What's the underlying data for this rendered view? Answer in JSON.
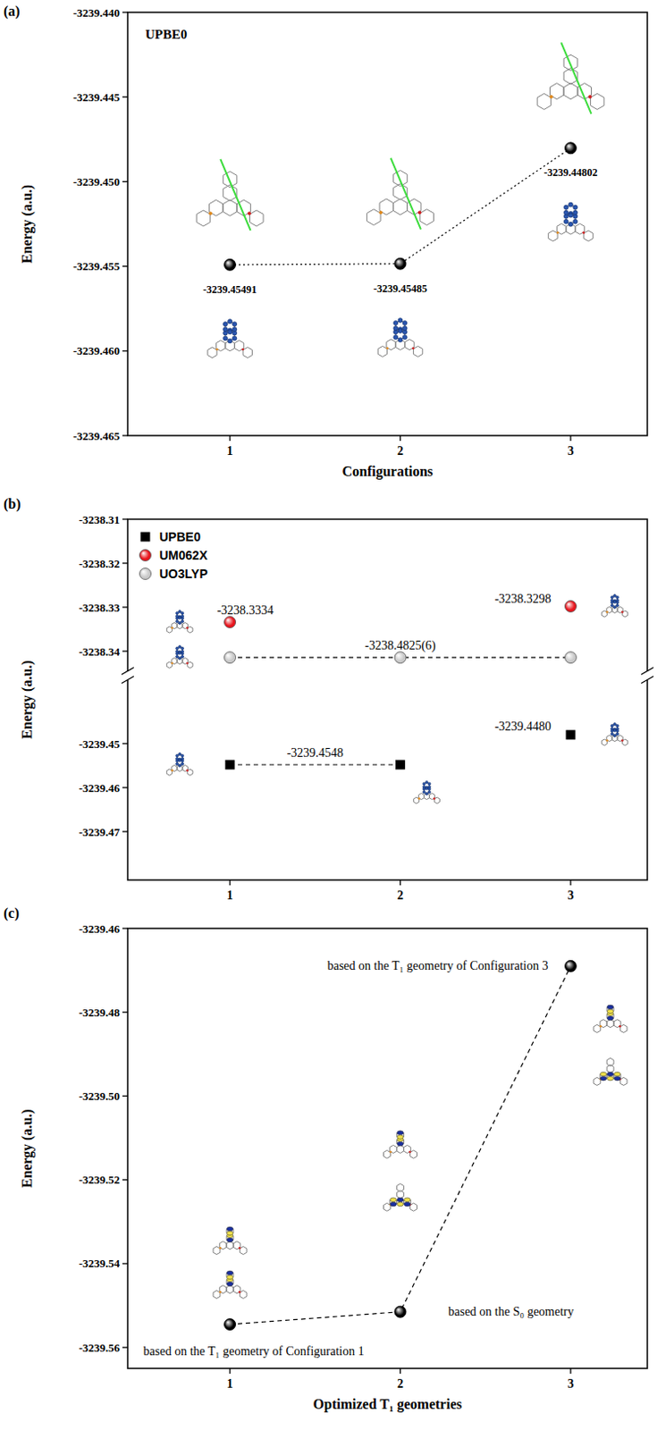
{
  "chart_data": [
    {
      "type": "line",
      "panel": "(a)",
      "title": "UPBE0",
      "x_title": "Configurations",
      "y_title": "Energy (a.u.)",
      "x": [
        1,
        2,
        3
      ],
      "xlim": [
        0.4,
        3.45
      ],
      "xticks": [
        1,
        2,
        3
      ],
      "ylim": [
        -3239.465,
        -3239.44
      ],
      "yticks": [
        -3239.465,
        {
          "value": -3239.46,
          "label": "-3239.460"
        },
        -3239.455,
        {
          "value": -3239.45,
          "label": "-3239.450"
        },
        -3239.445,
        {
          "value": -3239.44,
          "label": "-3239.440"
        }
      ],
      "data_labels": true,
      "series": [
        {
          "color": "#000000",
          "marker": "circle",
          "line_style": "dotted",
          "values": [
            -3239.45491,
            -3239.45485,
            -3239.44802
          ]
        }
      ]
    },
    {
      "type": "line",
      "panel": "(b)",
      "y_title": "Energy (a.u.)",
      "x": [
        1,
        2,
        3
      ],
      "xlim": [
        0.4,
        3.45
      ],
      "xticks": [
        1,
        2,
        3
      ],
      "ylim": [
        -3239.481,
        -3238.31
      ],
      "axis_break": [
        -3239.44,
        -3238.34
      ],
      "yticks": [
        -3239.47,
        -3239.46,
        -3239.45,
        -3238.34,
        -3238.33,
        -3238.32,
        -3238.31
      ],
      "legend": "upper left",
      "series": [
        {
          "name": "UPBE0",
          "color": "#000000",
          "marker": "square",
          "line_style": "dashed",
          "line_points": [
            0,
            1
          ],
          "values": [
            -3239.4548,
            -3239.4548,
            -3239.448
          ]
        },
        {
          "name": "UM062X",
          "color": "#e8141c",
          "marker": "circle",
          "line_style": "none",
          "values": [
            -3238.3334,
            null,
            -3238.3298
          ]
        },
        {
          "name": "UO3LYP",
          "color": "#c8c8c8",
          "marker": "circle",
          "line_style": "dashed",
          "values": [
            -3238.4825,
            -3238.4825,
            -3238.4825
          ]
        }
      ],
      "annotations": [
        {
          "text": "-3238.3334",
          "x": 1.09,
          "y": -3238.3306
        },
        {
          "text": "-3238.3298",
          "x": 2.72,
          "y": -3238.328
        },
        {
          "text": "-3238.4825(6)",
          "x": 2,
          "y": -3238.3386
        },
        {
          "text": "-3239.4548",
          "x": 1.5,
          "y": -3239.452
        },
        {
          "text": "-3239.4480",
          "x": 2.72,
          "y": -3239.446
        }
      ]
    },
    {
      "type": "line",
      "panel": "(c)",
      "x_title": "Optimized T₁ geometries",
      "y_title": "Energy (a.u.)",
      "x": [
        1,
        2,
        3
      ],
      "xlim": [
        0.4,
        3.45
      ],
      "xticks": [
        1,
        2,
        3
      ],
      "ylim": [
        -3239.565,
        -3239.46
      ],
      "yticks": [
        -3239.56,
        -3239.54,
        -3239.52,
        {
          "value": -3239.5,
          "label": "-3239.50"
        },
        -3239.48,
        -3239.46
      ],
      "series": [
        {
          "color": "#000000",
          "marker": "circle",
          "line_style": "dashed",
          "values": [
            -3239.5545,
            -3239.5515,
            -3239.469
          ]
        }
      ],
      "annotations": [
        {
          "text": "based on the T₁ geometry of Configuration 1",
          "x": 1.14,
          "y": -3239.5608
        },
        {
          "text": "based on the S₀ geometry",
          "x": 2.65,
          "y": -3239.5515
        },
        {
          "text": "based on the T₁ geometry of Configuration 3",
          "x": 2.22,
          "y": -3239.469
        }
      ]
    }
  ]
}
